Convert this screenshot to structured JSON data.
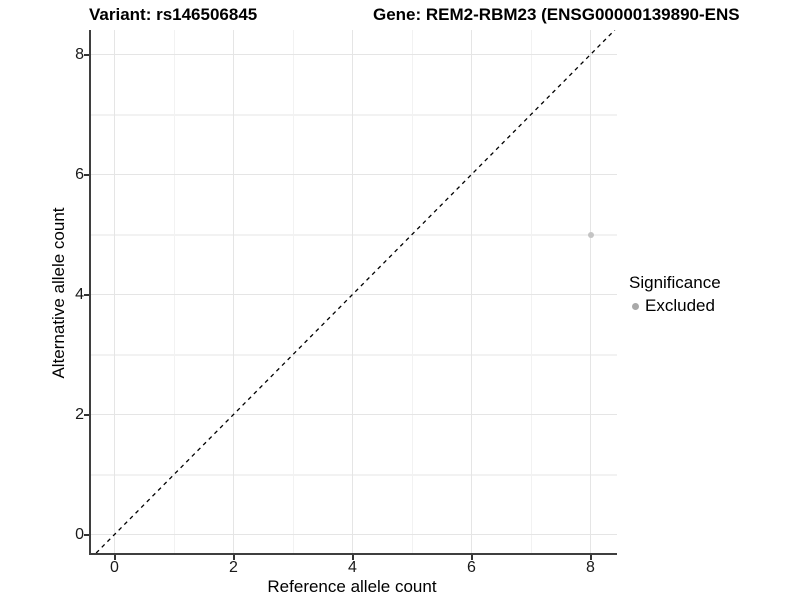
{
  "chart_data": {
    "type": "scatter",
    "title_left": "Variant: rs146506845",
    "title_right": "Gene: REM2-RBM23 (ENSG00000139890-ENS",
    "xlabel": "Reference allele count",
    "ylabel": "Alternative allele count",
    "xlim": [
      -0.42,
      8.42
    ],
    "ylim": [
      -0.41,
      8.41
    ],
    "x_ticks": [
      0,
      2,
      4,
      6,
      8
    ],
    "x_minor_ticks": [
      1,
      3,
      5,
      7
    ],
    "y_ticks": [
      0,
      2,
      4,
      6,
      8
    ],
    "y_minor_ticks": [
      1,
      3,
      5,
      7
    ],
    "grid": "on",
    "reference_line": {
      "style": "dashed",
      "slope": 1,
      "intercept": 0
    },
    "series": [
      {
        "name": "Excluded",
        "color": "#c4c4c4",
        "point_size": 6,
        "points": [
          {
            "x": 8,
            "y": 5
          }
        ]
      }
    ],
    "legend": {
      "position": "right",
      "title": "Significance",
      "entries": [
        {
          "label": "Excluded",
          "key_color": "#a9a9a9"
        }
      ]
    }
  },
  "colors": {
    "grid_major": "#e5e5e5",
    "grid_minor": "#f2f2f2",
    "axis_line": "#3f3f3f",
    "tick_mark": "#333333",
    "diagonal": "#000000"
  }
}
